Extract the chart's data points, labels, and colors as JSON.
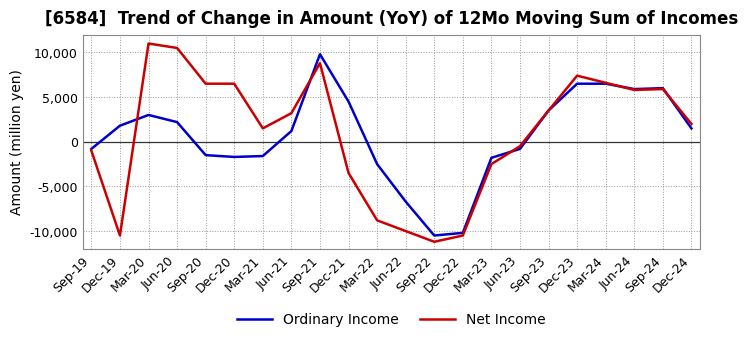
{
  "title": "[6584]  Trend of Change in Amount (YoY) of 12Mo Moving Sum of Incomes",
  "ylabel": "Amount (million yen)",
  "x_labels": [
    "Sep-19",
    "Dec-19",
    "Mar-20",
    "Jun-20",
    "Sep-20",
    "Dec-20",
    "Mar-21",
    "Jun-21",
    "Sep-21",
    "Dec-21",
    "Mar-22",
    "Jun-22",
    "Sep-22",
    "Dec-22",
    "Mar-23",
    "Jun-23",
    "Sep-23",
    "Dec-23",
    "Mar-24",
    "Jun-24",
    "Sep-24",
    "Dec-24"
  ],
  "ordinary_income": [
    -800,
    1800,
    3000,
    2200,
    -1500,
    -1700,
    -1600,
    1200,
    9800,
    4500,
    -2500,
    -6700,
    -10500,
    -10200,
    -1800,
    -800,
    3500,
    6500,
    6500,
    5900,
    6000,
    1500
  ],
  "net_income": [
    -1000,
    -10500,
    11000,
    10500,
    6500,
    6500,
    1500,
    3200,
    8800,
    -3500,
    -8800,
    -10000,
    -11200,
    -10500,
    -2500,
    -500,
    3500,
    7400,
    6600,
    5800,
    5900,
    2000
  ],
  "ordinary_income_color": "#0000cc",
  "net_income_color": "#cc0000",
  "ylim": [
    -12000,
    12000
  ],
  "yticks": [
    -10000,
    -5000,
    0,
    5000,
    10000
  ],
  "background_color": "#ffffff",
  "grid_color": "#999999",
  "line_width": 1.8,
  "title_fontsize": 12,
  "legend_fontsize": 10,
  "tick_fontsize": 9
}
